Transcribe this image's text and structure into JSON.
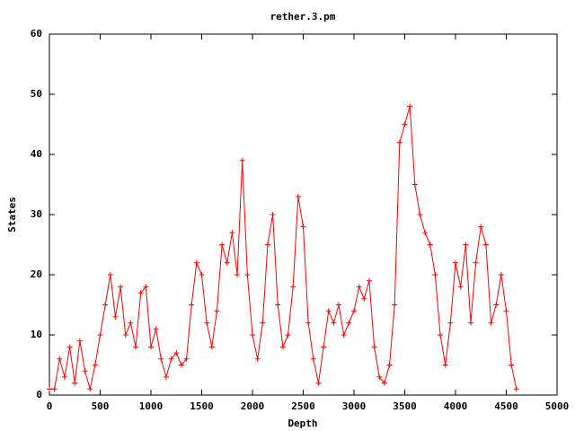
{
  "chart_data": {
    "type": "line",
    "title": "rether.3.pm",
    "xlabel": "Depth",
    "ylabel": "States",
    "xlim": [
      0,
      5000
    ],
    "ylim": [
      0,
      60
    ],
    "xticks": [
      0,
      500,
      1000,
      1500,
      2000,
      2500,
      3000,
      3500,
      4000,
      4500,
      5000
    ],
    "yticks": [
      0,
      10,
      20,
      30,
      40,
      50,
      60
    ],
    "grid": false,
    "series": [
      {
        "name": "rether.3.pm",
        "color": "#ff0000",
        "x": [
          0,
          50,
          100,
          150,
          200,
          250,
          300,
          350,
          400,
          450,
          500,
          550,
          600,
          650,
          700,
          750,
          800,
          850,
          900,
          950,
          1000,
          1050,
          1100,
          1150,
          1200,
          1250,
          1300,
          1350,
          1400,
          1450,
          1500,
          1550,
          1600,
          1650,
          1700,
          1750,
          1800,
          1850,
          1900,
          1950,
          2000,
          2050,
          2100,
          2150,
          2200,
          2250,
          2300,
          2350,
          2400,
          2450,
          2500,
          2550,
          2600,
          2650,
          2700,
          2750,
          2800,
          2850,
          2900,
          2950,
          3000,
          3050,
          3100,
          3150,
          3200,
          3250,
          3300,
          3350,
          3400,
          3450,
          3500,
          3550,
          3600,
          3650,
          3700,
          3750,
          3800,
          3850,
          3900,
          3950,
          4000,
          4050,
          4100,
          4150,
          4200,
          4250,
          4300,
          4350,
          4400,
          4450,
          4500,
          4550,
          4600
        ],
        "values": [
          1,
          1,
          6,
          3,
          8,
          2,
          9,
          4,
          1,
          5,
          10,
          15,
          20,
          13,
          18,
          10,
          12,
          8,
          17,
          18,
          8,
          11,
          6,
          3,
          6,
          7,
          5,
          6,
          15,
          22,
          20,
          12,
          8,
          14,
          25,
          22,
          27,
          20,
          39,
          20,
          10,
          6,
          12,
          25,
          30,
          15,
          8,
          10,
          18,
          33,
          28,
          12,
          6,
          2,
          8,
          14,
          12,
          15,
          10,
          12,
          14,
          18,
          16,
          19,
          8,
          3,
          2,
          5,
          15,
          42,
          45,
          48,
          35,
          30,
          27,
          25,
          20,
          10,
          5,
          12,
          22,
          18,
          25,
          12,
          22,
          28,
          25,
          12,
          15,
          20,
          14,
          5,
          1
        ]
      }
    ]
  }
}
